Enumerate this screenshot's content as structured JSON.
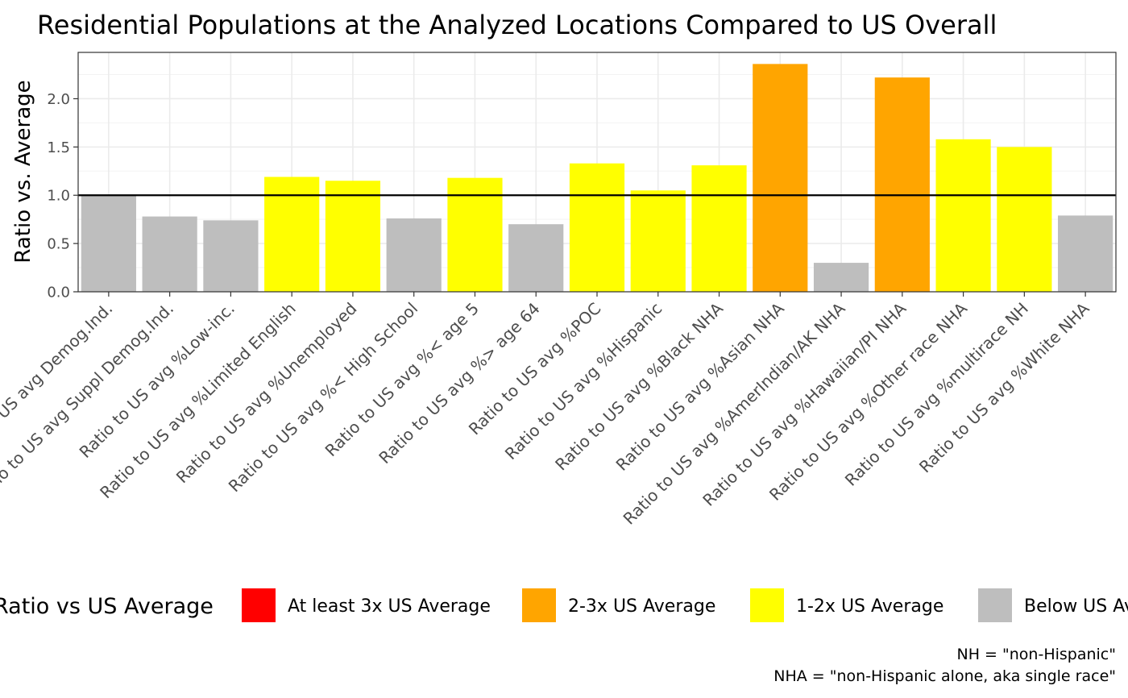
{
  "chart_data": {
    "type": "bar",
    "title": "Residential Populations at the Analyzed Locations Compared to US Overall",
    "xlabel": "",
    "ylabel": "Ratio vs. Average",
    "ylim": [
      0,
      2.48
    ],
    "yticks": [
      0.0,
      0.5,
      1.0,
      1.5,
      2.0
    ],
    "ytick_labels": [
      "0.0",
      "0.5",
      "1.0",
      "1.5",
      "2.0"
    ],
    "reference_line": 1.0,
    "grid": true,
    "categories": [
      "Ratio to US avg Demog.Ind.",
      "Ratio to US avg Suppl Demog.Ind.",
      "Ratio to US avg %Low-inc.",
      "Ratio to US avg %Limited English",
      "Ratio to US avg %Unemployed",
      "Ratio to US avg %< High School",
      "Ratio to US avg %< age 5",
      "Ratio to US avg %> age 64",
      "Ratio to US avg %POC",
      "Ratio to US avg %Hispanic",
      "Ratio to US avg %Black NHA",
      "Ratio to US avg %Asian NHA",
      "Ratio to US avg %AmerIndian/AK NHA",
      "Ratio to US avg %Hawaiian/PI NHA",
      "Ratio to US avg %Other race NHA",
      "Ratio to US avg %multirace NH",
      "Ratio to US avg %White NHA"
    ],
    "values": [
      1.0,
      0.78,
      0.74,
      1.19,
      1.15,
      0.76,
      1.18,
      0.7,
      1.33,
      1.05,
      1.31,
      2.36,
      0.3,
      2.22,
      1.58,
      1.5,
      0.79
    ],
    "bar_groups": [
      "below",
      "below",
      "below",
      "1-2x",
      "1-2x",
      "below",
      "1-2x",
      "below",
      "1-2x",
      "1-2x",
      "1-2x",
      "2-3x",
      "below",
      "2-3x",
      "1-2x",
      "1-2x",
      "below"
    ],
    "legend": {
      "title": "Ratio vs US Average",
      "placement": "bottom",
      "entries": [
        {
          "key": "3x",
          "label": "At least 3x US Average",
          "color": "#ff0000"
        },
        {
          "key": "2-3x",
          "label": "2-3x US Average",
          "color": "#ffa500"
        },
        {
          "key": "1-2x",
          "label": "1-2x US Average",
          "color": "#ffff00"
        },
        {
          "key": "below",
          "label": "Below US Average",
          "color": "#bebebe"
        }
      ]
    },
    "caption": [
      "NH = \"non-Hispanic\"",
      "NHA = \"non-Hispanic alone, aka single race\""
    ]
  }
}
